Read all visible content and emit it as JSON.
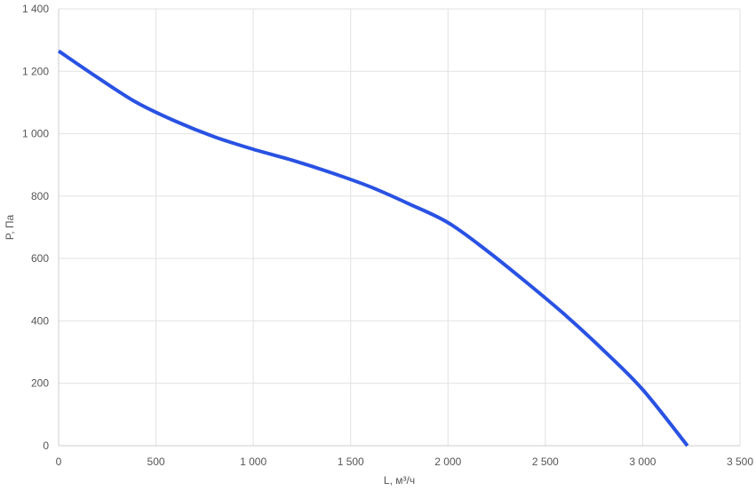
{
  "chart_data": {
    "type": "line",
    "title": "",
    "xlabel": "L, м³/ч",
    "ylabel": "P, Па",
    "xlim": [
      0,
      3500
    ],
    "ylim": [
      0,
      1400
    ],
    "x_ticks": [
      0,
      500,
      1000,
      1500,
      2000,
      2500,
      3000,
      3500
    ],
    "x_tick_labels": [
      "0",
      "500",
      "1 000",
      "1 500",
      "2 000",
      "2 500",
      "3 000",
      "3 500"
    ],
    "y_ticks": [
      0,
      200,
      400,
      600,
      800,
      1000,
      1200,
      1400
    ],
    "y_tick_labels": [
      "0",
      "200",
      "400",
      "600",
      "800",
      "1 000",
      "1 200",
      "1 400"
    ],
    "grid": true,
    "series": [
      {
        "color": "#2952e3",
        "x": [
          0,
          200,
          400,
          600,
          800,
          1000,
          1200,
          1400,
          1600,
          1800,
          2000,
          2200,
          2400,
          2600,
          2800,
          3000,
          3230
        ],
        "y": [
          1265,
          1180,
          1100,
          1040,
          990,
          950,
          915,
          875,
          830,
          775,
          715,
          625,
          525,
          420,
          305,
          180,
          0
        ]
      }
    ]
  }
}
